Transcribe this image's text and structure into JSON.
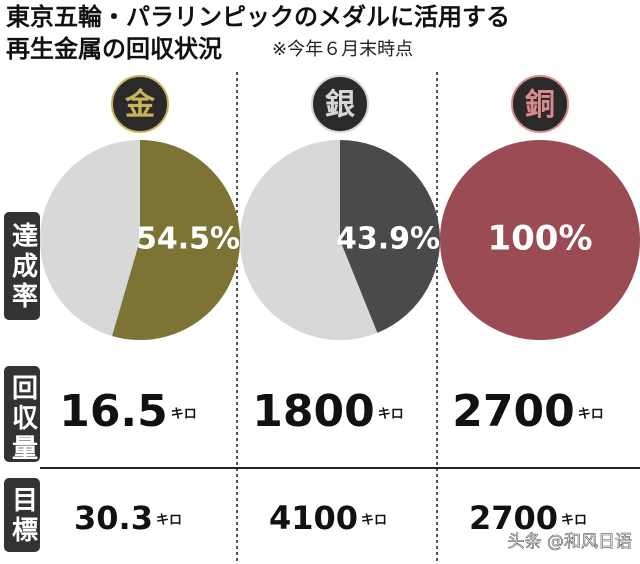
{
  "title": "東京五輪・パラリンピックのメダルに活用する",
  "subtitle": "再生金属の回収状況",
  "note": "※今年６月末時点",
  "chart_data": [
    {
      "type": "pie",
      "title": "金",
      "values": [
        54.5
      ],
      "value_labels": [
        "54.5%"
      ],
      "color": "#7d7335",
      "medal_color": "#c9b35a"
    },
    {
      "type": "pie",
      "title": "銀",
      "values": [
        43.9
      ],
      "value_labels": [
        "43.9%"
      ],
      "color": "#4a4a4d",
      "medal_color": "#d6d6d6"
    },
    {
      "type": "pie",
      "title": "銅",
      "values": [
        100
      ],
      "value_labels": [
        "100%"
      ],
      "color": "#9b4b53",
      "medal_color": "#d98a8f"
    }
  ],
  "rows": [
    {
      "label": "達成率"
    },
    {
      "label": "回収量",
      "cells": [
        {
          "value": "16.5",
          "unit": "キロ"
        },
        {
          "value": "1800",
          "unit": "キロ"
        },
        {
          "value": "2700",
          "unit": "キロ"
        }
      ]
    },
    {
      "label": "目標",
      "cells": [
        {
          "value": "30.3",
          "unit": "キロ"
        },
        {
          "value": "4100",
          "unit": "キロ"
        },
        {
          "value": "2700",
          "unit": "キロ"
        }
      ]
    }
  ],
  "watermark": "头条 @和风日语"
}
